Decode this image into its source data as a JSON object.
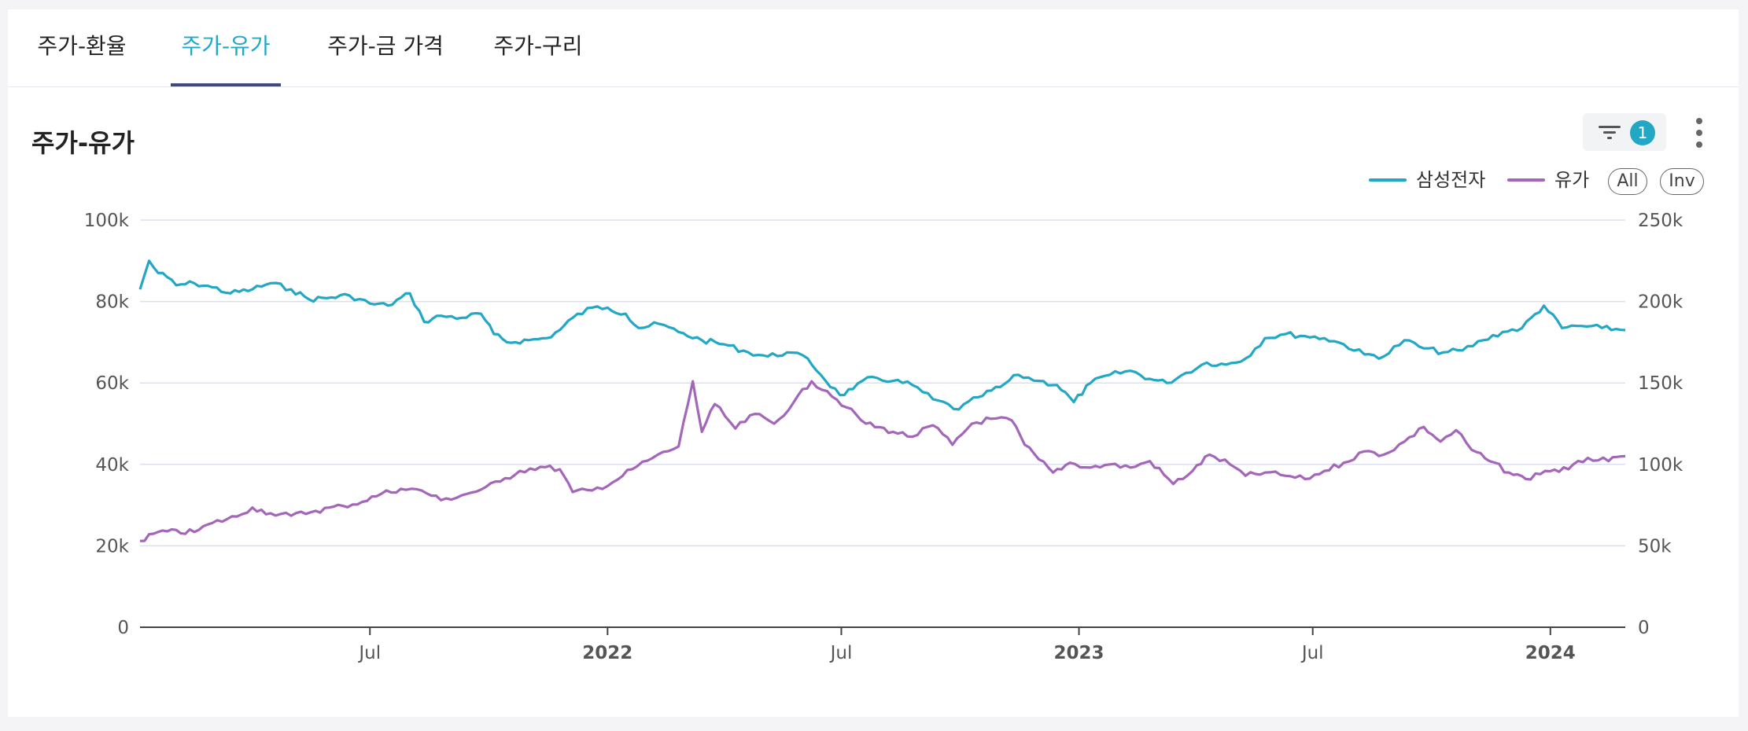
{
  "tabs": [
    {
      "label": "주가-환율",
      "active": false
    },
    {
      "label": "주가-유가",
      "active": true
    },
    {
      "label": "주가-금 가격",
      "active": false
    },
    {
      "label": "주가-구리",
      "active": false
    }
  ],
  "chart_title": "주가-유가",
  "filter": {
    "icon": "filter-icon",
    "count": "1"
  },
  "menu_icon": "more-vertical-icon",
  "legend": {
    "items": [
      {
        "label": "삼성전자",
        "color": "#22a7c4"
      },
      {
        "label": "유가",
        "color": "#a366b8"
      }
    ],
    "all_label": "All",
    "inv_label": "Inv"
  },
  "chart_data": {
    "type": "line",
    "title": "주가-유가",
    "x_ticks": [
      {
        "label": "Jul",
        "date": "2021-07-01",
        "bold": false
      },
      {
        "label": "2022",
        "date": "2022-01-01",
        "bold": true
      },
      {
        "label": "Jul",
        "date": "2022-07-01",
        "bold": false
      },
      {
        "label": "2023",
        "date": "2023-01-01",
        "bold": true
      },
      {
        "label": "Jul",
        "date": "2023-07-01",
        "bold": false
      },
      {
        "label": "2024",
        "date": "2024-01-01",
        "bold": true
      }
    ],
    "x_range": [
      "2021-01-04",
      "2024-02-28"
    ],
    "y_left": {
      "ticks": [
        "0",
        "20k",
        "40k",
        "60k",
        "80k",
        "100k"
      ],
      "min": 0,
      "max": 100000
    },
    "y_right": {
      "ticks": [
        "0",
        "50k",
        "100k",
        "150k",
        "200k",
        "250k"
      ],
      "min": 0,
      "max": 250000
    },
    "grid": true,
    "legend_position": "top-right",
    "series": [
      {
        "name": "삼성전자",
        "axis": "left",
        "color": "#22a7c4",
        "points": [
          [
            "2021-01-04",
            83000
          ],
          [
            "2021-01-11",
            90000
          ],
          [
            "2021-01-18",
            87000
          ],
          [
            "2021-01-25",
            86000
          ],
          [
            "2021-02-01",
            84000
          ],
          [
            "2021-02-15",
            84500
          ],
          [
            "2021-03-01",
            83500
          ],
          [
            "2021-03-15",
            82000
          ],
          [
            "2021-04-01",
            83000
          ],
          [
            "2021-04-15",
            84500
          ],
          [
            "2021-05-01",
            83000
          ],
          [
            "2021-05-15",
            80500
          ],
          [
            "2021-06-01",
            81000
          ],
          [
            "2021-06-15",
            81500
          ],
          [
            "2021-07-01",
            79500
          ],
          [
            "2021-07-15",
            79000
          ],
          [
            "2021-08-01",
            82000
          ],
          [
            "2021-08-12",
            75000
          ],
          [
            "2021-08-25",
            76500
          ],
          [
            "2021-09-10",
            76000
          ],
          [
            "2021-09-25",
            77000
          ],
          [
            "2021-10-05",
            72000
          ],
          [
            "2021-10-15",
            70000
          ],
          [
            "2021-11-01",
            70500
          ],
          [
            "2021-11-15",
            71000
          ],
          [
            "2021-11-25",
            73000
          ],
          [
            "2021-12-05",
            76000
          ],
          [
            "2021-12-20",
            78500
          ],
          [
            "2022-01-01",
            78500
          ],
          [
            "2022-01-15",
            77000
          ],
          [
            "2022-01-25",
            73500
          ],
          [
            "2022-02-10",
            74500
          ],
          [
            "2022-02-25",
            72500
          ],
          [
            "2022-03-15",
            70500
          ],
          [
            "2022-04-01",
            69500
          ],
          [
            "2022-04-20",
            67500
          ],
          [
            "2022-05-05",
            66500
          ],
          [
            "2022-05-20",
            67500
          ],
          [
            "2022-06-05",
            66000
          ],
          [
            "2022-06-15",
            62000
          ],
          [
            "2022-06-30",
            57000
          ],
          [
            "2022-07-10",
            58500
          ],
          [
            "2022-07-25",
            61500
          ],
          [
            "2022-08-10",
            60500
          ],
          [
            "2022-08-25",
            59500
          ],
          [
            "2022-09-10",
            56000
          ],
          [
            "2022-09-30",
            53500
          ],
          [
            "2022-10-15",
            56500
          ],
          [
            "2022-11-01",
            59000
          ],
          [
            "2022-11-15",
            62000
          ],
          [
            "2022-12-01",
            60500
          ],
          [
            "2022-12-15",
            59500
          ],
          [
            "2022-12-28",
            55300
          ],
          [
            "2023-01-10",
            60000
          ],
          [
            "2023-01-25",
            62000
          ],
          [
            "2023-02-10",
            63000
          ],
          [
            "2023-02-25",
            61000
          ],
          [
            "2023-03-10",
            60000
          ],
          [
            "2023-03-25",
            62500
          ],
          [
            "2023-04-10",
            65000
          ],
          [
            "2023-04-25",
            64500
          ],
          [
            "2023-05-10",
            66000
          ],
          [
            "2023-05-25",
            71000
          ],
          [
            "2023-06-10",
            72000
          ],
          [
            "2023-06-25",
            71500
          ],
          [
            "2023-07-10",
            71000
          ],
          [
            "2023-07-25",
            69500
          ],
          [
            "2023-08-10",
            67000
          ],
          [
            "2023-08-25",
            66500
          ],
          [
            "2023-09-10",
            70500
          ],
          [
            "2023-09-25",
            68500
          ],
          [
            "2023-10-10",
            67500
          ],
          [
            "2023-10-25",
            68000
          ],
          [
            "2023-11-10",
            70500
          ],
          [
            "2023-11-25",
            72500
          ],
          [
            "2023-12-10",
            73500
          ],
          [
            "2023-12-27",
            79000
          ],
          [
            "2024-01-10",
            73500
          ],
          [
            "2024-01-25",
            74000
          ],
          [
            "2024-02-10",
            73500
          ],
          [
            "2024-02-28",
            73000
          ]
        ]
      },
      {
        "name": "유가",
        "axis": "right",
        "color": "#a366b8",
        "points": [
          [
            "2021-01-04",
            53000
          ],
          [
            "2021-01-18",
            58500
          ],
          [
            "2021-02-15",
            58500
          ],
          [
            "2021-03-01",
            64000
          ],
          [
            "2021-03-20",
            68000
          ],
          [
            "2021-04-01",
            73500
          ],
          [
            "2021-04-15",
            70000
          ],
          [
            "2021-05-01",
            68500
          ],
          [
            "2021-05-20",
            71500
          ],
          [
            "2021-06-10",
            74500
          ],
          [
            "2021-06-25",
            77000
          ],
          [
            "2021-07-10",
            82000
          ],
          [
            "2021-07-25",
            85000
          ],
          [
            "2021-08-10",
            84000
          ],
          [
            "2021-08-25",
            78000
          ],
          [
            "2021-09-10",
            81000
          ],
          [
            "2021-09-25",
            84500
          ],
          [
            "2021-10-10",
            89500
          ],
          [
            "2021-10-25",
            96000
          ],
          [
            "2021-11-10",
            98500
          ],
          [
            "2021-11-25",
            97000
          ],
          [
            "2021-12-05",
            83000
          ],
          [
            "2021-12-20",
            84000
          ],
          [
            "2022-01-05",
            89000
          ],
          [
            "2022-01-20",
            97000
          ],
          [
            "2022-02-05",
            104000
          ],
          [
            "2022-02-25",
            111000
          ],
          [
            "2022-03-08",
            151000
          ],
          [
            "2022-03-15",
            120000
          ],
          [
            "2022-03-25",
            137000
          ],
          [
            "2022-04-10",
            122000
          ],
          [
            "2022-04-25",
            131000
          ],
          [
            "2022-05-10",
            125000
          ],
          [
            "2022-05-25",
            138000
          ],
          [
            "2022-06-08",
            151000
          ],
          [
            "2022-06-20",
            145000
          ],
          [
            "2022-07-05",
            135000
          ],
          [
            "2022-07-20",
            125000
          ],
          [
            "2022-08-10",
            120000
          ],
          [
            "2022-08-25",
            117000
          ],
          [
            "2022-09-10",
            124000
          ],
          [
            "2022-09-25",
            112000
          ],
          [
            "2022-10-10",
            125000
          ],
          [
            "2022-10-25",
            128000
          ],
          [
            "2022-11-10",
            127000
          ],
          [
            "2022-11-20",
            112000
          ],
          [
            "2022-12-01",
            103000
          ],
          [
            "2022-12-12",
            95000
          ],
          [
            "2022-12-25",
            101000
          ],
          [
            "2023-01-10",
            98000
          ],
          [
            "2023-01-25",
            100000
          ],
          [
            "2023-02-10",
            98000
          ],
          [
            "2023-02-25",
            102000
          ],
          [
            "2023-03-15",
            88000
          ],
          [
            "2023-03-30",
            96000
          ],
          [
            "2023-04-12",
            106000
          ],
          [
            "2023-04-28",
            100000
          ],
          [
            "2023-05-10",
            93000
          ],
          [
            "2023-05-25",
            95000
          ],
          [
            "2023-06-10",
            93000
          ],
          [
            "2023-06-25",
            91000
          ],
          [
            "2023-07-10",
            96000
          ],
          [
            "2023-07-25",
            101000
          ],
          [
            "2023-08-10",
            108000
          ],
          [
            "2023-08-25",
            106000
          ],
          [
            "2023-09-10",
            114000
          ],
          [
            "2023-09-25",
            123000
          ],
          [
            "2023-10-08",
            114000
          ],
          [
            "2023-10-20",
            121000
          ],
          [
            "2023-11-01",
            109000
          ],
          [
            "2023-11-15",
            102000
          ],
          [
            "2023-11-30",
            95000
          ],
          [
            "2023-12-13",
            91000
          ],
          [
            "2023-12-28",
            96000
          ],
          [
            "2024-01-15",
            97000
          ],
          [
            "2024-01-30",
            104000
          ],
          [
            "2024-02-15",
            102000
          ],
          [
            "2024-02-28",
            105000
          ]
        ]
      }
    ]
  }
}
